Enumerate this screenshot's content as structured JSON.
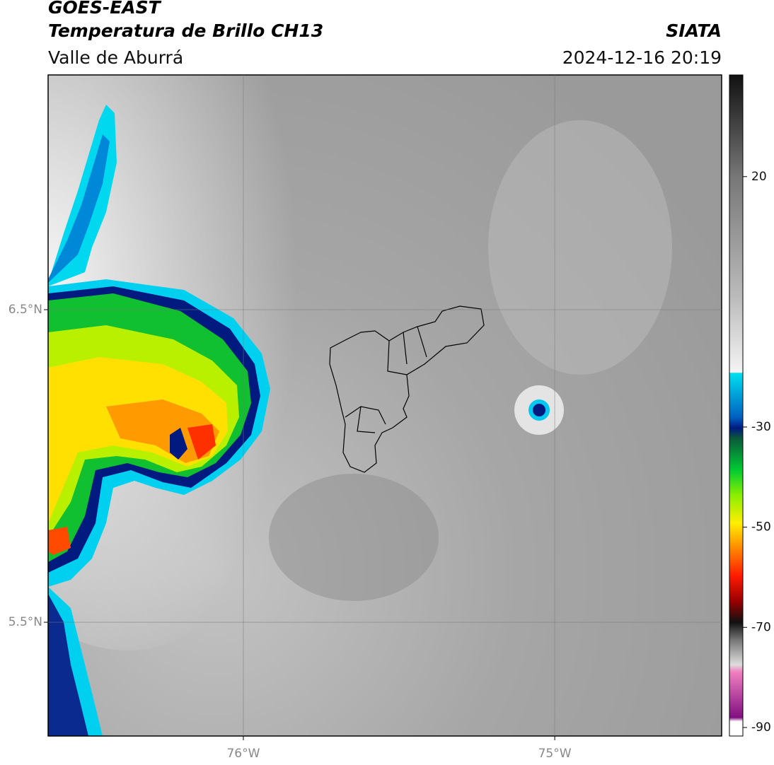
{
  "header": {
    "satellite": "GOES-EAST",
    "product": "Temperatura de Brillo CH13",
    "region": "Valle de Aburrá",
    "source": "SIATA",
    "datetime": "2024-12-16 20:19"
  },
  "map": {
    "lonlim": [
      -76.627,
      -74.464
    ],
    "latlim": [
      5.136,
      7.251
    ],
    "lat_ticks": [
      {
        "value": 6.5,
        "label": "6.5°N"
      },
      {
        "value": 5.5,
        "label": "5.5°N"
      }
    ],
    "lon_ticks": [
      {
        "value": -76,
        "label": "76°W"
      },
      {
        "value": -75,
        "label": "75°W"
      }
    ]
  },
  "colorbar": {
    "lim": [
      -91.7,
      40.3
    ],
    "ticks": [
      20,
      -30,
      -50,
      -70,
      -90
    ]
  }
}
